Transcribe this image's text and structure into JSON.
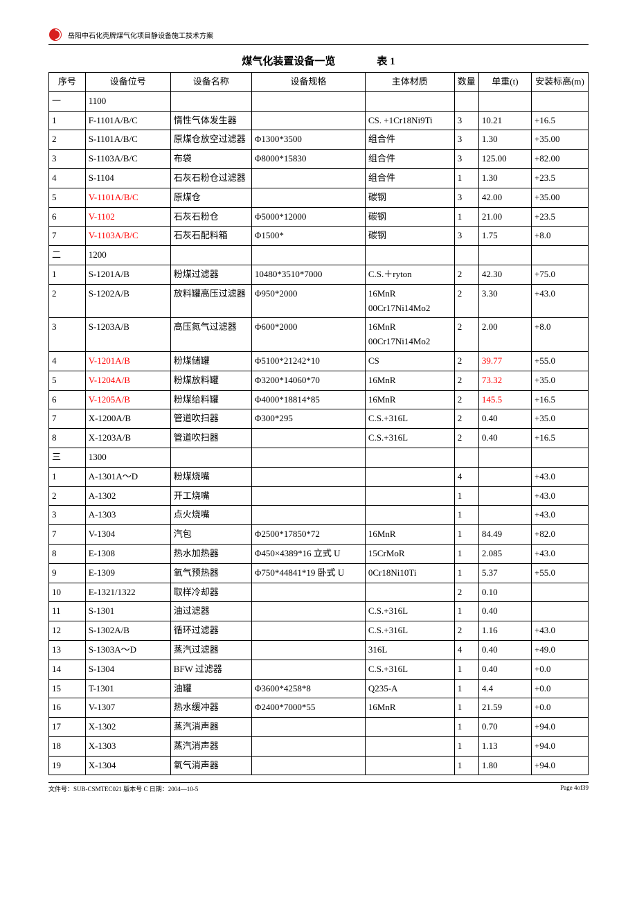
{
  "header": {
    "logo_color": "#d81e1e",
    "text": "岳阳中石化壳牌煤气化项目静设备施工技术方案"
  },
  "title": {
    "main": "煤气化装置设备一览",
    "table_no": "表 1"
  },
  "columns": {
    "seq": "序号",
    "code": "设备位号",
    "name": "设备名称",
    "spec": "设备规格",
    "mat": "主体材质",
    "qty": "数量",
    "wt": "单重(t)",
    "elev": "安装标高(m)"
  },
  "rows": [
    {
      "seq": "一",
      "code": "1100",
      "name": "",
      "spec": "",
      "mat": "",
      "qty": "",
      "wt": "",
      "elev": ""
    },
    {
      "seq": "1",
      "code": "F-1101A/B/C",
      "name": "惰性气体发生器",
      "spec": "",
      "mat": "CS. +1Cr18Ni9Ti",
      "qty": "3",
      "wt": "10.21",
      "elev": "+16.5"
    },
    {
      "seq": "2",
      "code": "S-1101A/B/C",
      "name": "原煤仓放空过滤器",
      "spec": "Φ1300*3500",
      "mat": "组合件",
      "qty": "3",
      "wt": "1.30",
      "elev": "+35.00"
    },
    {
      "seq": "3",
      "code": "S-1103A/B/C",
      "name": "布袋",
      "spec": "Φ8000*15830",
      "mat": "组合件",
      "qty": "3",
      "wt": "125.00",
      "elev": "+82.00"
    },
    {
      "seq": "4",
      "code": "S-1104",
      "name": "石灰石粉仓过滤器",
      "spec": "",
      "mat": "组合件",
      "qty": "1",
      "wt": "1.30",
      "elev": "+23.5"
    },
    {
      "seq": "5",
      "code": "V-1101A/B/C",
      "code_red": true,
      "name": "原煤仓",
      "spec": "",
      "mat": "碳钢",
      "qty": "3",
      "wt": "42.00",
      "elev": "+35.00"
    },
    {
      "seq": "6",
      "code": "V-1102",
      "code_red": true,
      "name": "石灰石粉仓",
      "spec": "Φ5000*12000",
      "mat": "碳钢",
      "qty": "1",
      "wt": "21.00",
      "elev": "+23.5"
    },
    {
      "seq": "7",
      "code": "V-1103A/B/C",
      "code_red": true,
      "name": "石灰石配料箱",
      "spec": "Φ1500*",
      "mat": "碳钢",
      "qty": "3",
      "wt": "1.75",
      "elev": "+8.0"
    },
    {
      "seq": "二",
      "code": "1200",
      "name": "",
      "spec": "",
      "mat": "",
      "qty": "",
      "wt": "",
      "elev": ""
    },
    {
      "seq": "1",
      "code": "S-1201A/B",
      "name": "粉煤过滤器",
      "spec": "10480*3510*7000",
      "mat": "C.S.＋ryton",
      "qty": "2",
      "wt": "42.30",
      "elev": "+75.0"
    },
    {
      "seq": "2",
      "code": "S-1202A/B",
      "name": "放料罐高压过滤器",
      "spec": "Φ950*2000",
      "mat": "16MnR 00Cr17Ni14Mo2",
      "qty": "2",
      "wt": "3.30",
      "elev": "+43.0"
    },
    {
      "seq": "3",
      "code": "S-1203A/B",
      "name": "高压氮气过滤器",
      "spec": "Φ600*2000",
      "mat": "16MnR 00Cr17Ni14Mo2",
      "qty": "2",
      "wt": "2.00",
      "elev": "+8.0"
    },
    {
      "seq": "4",
      "code": "V-1201A/B",
      "code_red": true,
      "name": "粉煤储罐",
      "spec": "Φ5100*21242*10",
      "mat": "CS",
      "qty": "2",
      "wt": "39.77",
      "wt_red": true,
      "elev": "+55.0"
    },
    {
      "seq": "5",
      "code": "V-1204A/B",
      "code_red": true,
      "name": "粉煤放料罐",
      "spec": "Φ3200*14060*70",
      "mat": "16MnR",
      "qty": "2",
      "wt": "73.32",
      "wt_red": true,
      "elev": "+35.0"
    },
    {
      "seq": "6",
      "code": "V-1205A/B",
      "code_red": true,
      "name": "粉煤给料罐",
      "spec": "Φ4000*18814*85",
      "mat": "16MnR",
      "qty": "2",
      "wt": "145.5",
      "wt_red": true,
      "elev": "+16.5"
    },
    {
      "seq": "7",
      "code": "X-1200A/B",
      "name": "管道吹扫器",
      "spec": "Φ300*295",
      "mat": "C.S.+316L",
      "qty": "2",
      "wt": "0.40",
      "elev": "+35.0"
    },
    {
      "seq": "8",
      "code": "X-1203A/B",
      "name": "管道吹扫器",
      "spec": "",
      "mat": "C.S.+316L",
      "qty": "2",
      "wt": "0.40",
      "elev": "+16.5"
    },
    {
      "seq": "三",
      "code": "1300",
      "name": "",
      "spec": "",
      "mat": "",
      "qty": "",
      "wt": "",
      "elev": ""
    },
    {
      "seq": "1",
      "code": "A-1301A～D",
      "name": "粉煤烧嘴",
      "spec": "",
      "mat": "",
      "qty": "4",
      "wt": "",
      "elev": "+43.0"
    },
    {
      "seq": "2",
      "code": "A-1302",
      "name": "开工烧嘴",
      "spec": "",
      "mat": "",
      "qty": "1",
      "wt": "",
      "elev": "+43.0"
    },
    {
      "seq": "3",
      "code": "A-1303",
      "name": "点火烧嘴",
      "spec": "",
      "mat": "",
      "qty": "1",
      "wt": "",
      "elev": "+43.0"
    },
    {
      "seq": "7",
      "code": "V-1304",
      "name": "汽包",
      "spec": "Φ2500*17850*72",
      "mat": "16MnR",
      "qty": "1",
      "wt": "84.49",
      "elev": "+82.0"
    },
    {
      "seq": "8",
      "code": "E-1308",
      "name": "热水加热器",
      "spec": "Φ450×4389*16 立式 U",
      "mat": "15CrMoR",
      "qty": "1",
      "wt": "2.085",
      "elev": "+43.0"
    },
    {
      "seq": "9",
      "code": "E-1309",
      "name": "氧气预热器",
      "spec": "Φ750*44841*19 卧式 U",
      "mat": "0Cr18Ni10Ti",
      "qty": "1",
      "wt": "5.37",
      "elev": "+55.0"
    },
    {
      "seq": "10",
      "code": "E-1321/1322",
      "name": "取样冷却器",
      "spec": "",
      "mat": "",
      "qty": "2",
      "wt": "0.10",
      "elev": ""
    },
    {
      "seq": "11",
      "code": "S-1301",
      "name": "油过滤器",
      "spec": "",
      "mat": "C.S.+316L",
      "qty": "1",
      "wt": "0.40",
      "elev": ""
    },
    {
      "seq": "12",
      "code": "S-1302A/B",
      "name": "循环过滤器",
      "spec": "",
      "mat": "C.S.+316L",
      "qty": "2",
      "wt": "1.16",
      "elev": "+43.0"
    },
    {
      "seq": "13",
      "code": "S-1303A～D",
      "name": "蒸汽过滤器",
      "spec": "",
      "mat": "316L",
      "qty": "4",
      "wt": "0.40",
      "elev": "+49.0"
    },
    {
      "seq": "14",
      "code": "S-1304",
      "name": "BFW 过滤器",
      "spec": "",
      "mat": "C.S.+316L",
      "qty": "1",
      "wt": "0.40",
      "elev": "+0.0"
    },
    {
      "seq": "15",
      "code": "T-1301",
      "name": "油罐",
      "spec": "Φ3600*4258*8",
      "mat": "Q235-A",
      "qty": "1",
      "wt": "4.4",
      "elev": "+0.0"
    },
    {
      "seq": "16",
      "code": "V-1307",
      "name": "热水缓冲器",
      "spec": "Φ2400*7000*55",
      "mat": "16MnR",
      "qty": "1",
      "wt": "21.59",
      "elev": "+0.0"
    },
    {
      "seq": "17",
      "code": "X-1302",
      "name": "蒸汽消声器",
      "spec": "",
      "mat": "",
      "qty": "1",
      "wt": "0.70",
      "elev": "+94.0"
    },
    {
      "seq": "18",
      "code": "X-1303",
      "name": "蒸汽消声器",
      "spec": "",
      "mat": "",
      "qty": "1",
      "wt": "1.13",
      "elev": "+94.0"
    },
    {
      "seq": "19",
      "code": "X-1304",
      "name": "氧气消声器",
      "spec": "",
      "mat": "",
      "qty": "1",
      "wt": "1.80",
      "elev": "+94.0"
    }
  ],
  "footer": {
    "left": "文件号：SUB-CSMTEC021  版本号 C  日期：2004—10-5",
    "right": "Page 4of39"
  }
}
